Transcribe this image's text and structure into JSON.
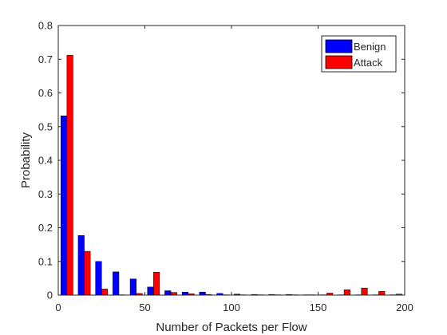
{
  "chart_data": {
    "type": "bar",
    "xlabel": "Number of Packets per Flow",
    "ylabel": "Probability",
    "xlim": [
      0,
      200
    ],
    "ylim": [
      0,
      0.8
    ],
    "xticks": [
      "0",
      "50",
      "100",
      "150",
      "200"
    ],
    "yticks": [
      "0",
      "0.1",
      "0.2",
      "0.3",
      "0.4",
      "0.5",
      "0.6",
      "0.7",
      "0.8"
    ],
    "grid": false,
    "legend_position": "top-right",
    "x": [
      5,
      15,
      25,
      35,
      45,
      55,
      65,
      75,
      85,
      95,
      105,
      115,
      125,
      135,
      145,
      155,
      165,
      175,
      185,
      195
    ],
    "series": [
      {
        "name": "Benign",
        "color": "#0000ff",
        "values": [
          0.532,
          0.177,
          0.1,
          0.069,
          0.048,
          0.024,
          0.013,
          0.009,
          0.009,
          0.005,
          0.003,
          0.002,
          0.002,
          0.002,
          0.001,
          0.001,
          0.001,
          0.001,
          0.001,
          0.001
        ]
      },
      {
        "name": "Attack",
        "color": "#ff0000",
        "values": [
          0.712,
          0.13,
          0.018,
          0.001,
          0.005,
          0.068,
          0.008,
          0.004,
          0.002,
          0.001,
          0.001,
          0.001,
          0.001,
          0.001,
          0.001,
          0.006,
          0.016,
          0.021,
          0.011,
          0.003
        ]
      }
    ]
  }
}
